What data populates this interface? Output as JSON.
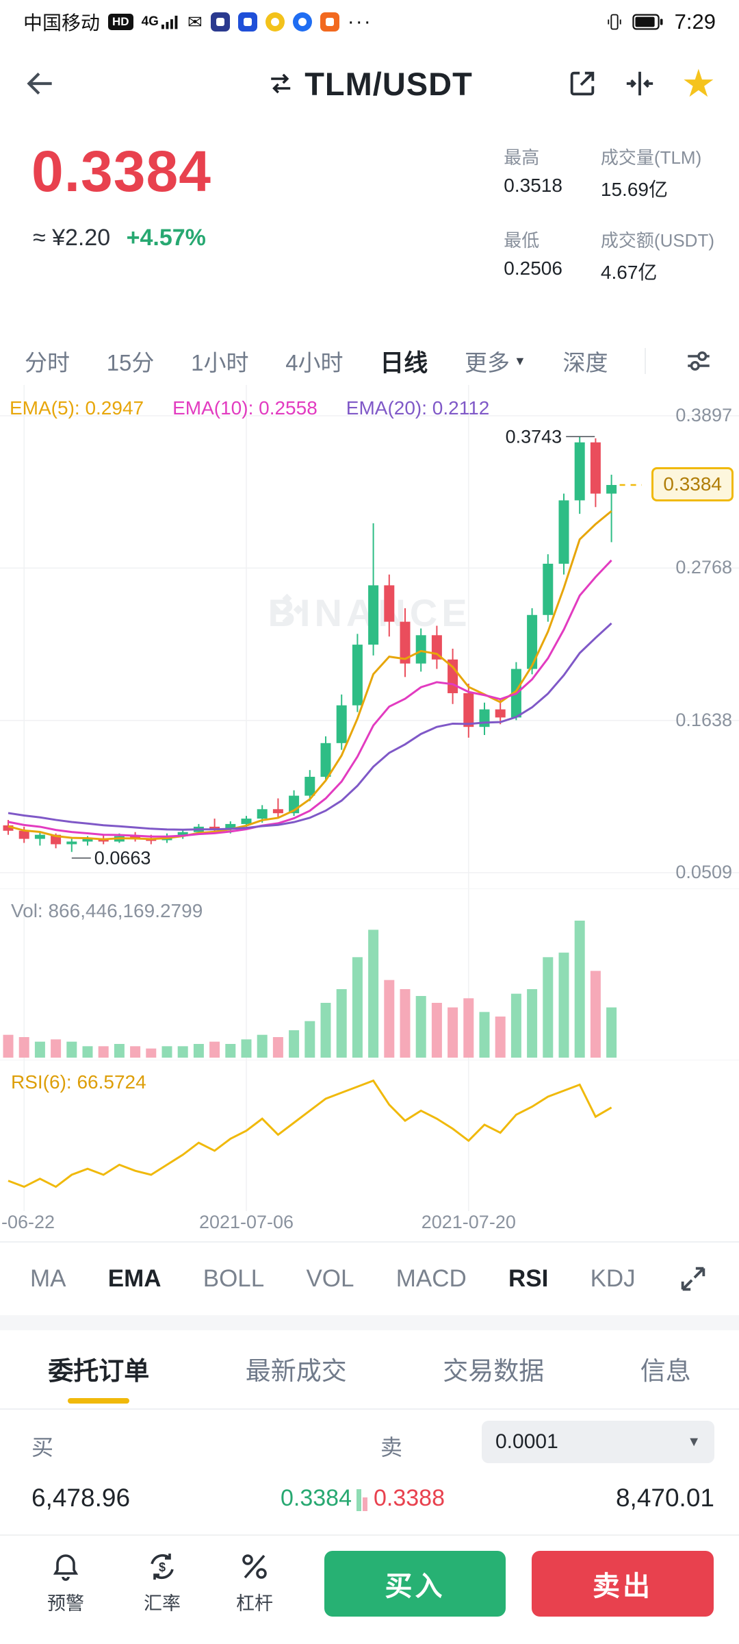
{
  "status_bar": {
    "carrier": "中国移动",
    "hd": "HD",
    "network": "4G",
    "time": "7:29"
  },
  "header": {
    "title": "TLM/USDT"
  },
  "price": {
    "last": "0.3384",
    "fiat": "≈ ¥2.20",
    "change": "+4.57%",
    "stats": [
      {
        "label": "最高",
        "value": "0.3518"
      },
      {
        "label": "成交量(TLM)",
        "value": "15.69亿"
      },
      {
        "label": "最低",
        "value": "0.2506"
      },
      {
        "label": "成交额(USDT)",
        "value": "4.67亿"
      }
    ]
  },
  "period_tabs": {
    "items": [
      "分时",
      "15分",
      "1小时",
      "4小时",
      "日线",
      "更多",
      "深度"
    ],
    "active": "日线"
  },
  "chart_data": {
    "type": "candlestick",
    "watermark": "BINANCE",
    "overlays": [
      {
        "label": "EMA(5): 0.2947",
        "period": 5,
        "color": "#e7a60a"
      },
      {
        "label": "EMA(10): 0.2558",
        "period": 10,
        "color": "#e23bc0"
      },
      {
        "label": "EMA(20): 0.2112",
        "period": 20,
        "color": "#7f58c7"
      }
    ],
    "y_axis": [
      {
        "label": "0.3897",
        "v": 0.3897
      },
      {
        "label": "0.2768",
        "v": 0.2768
      },
      {
        "label": "0.1638",
        "v": 0.1638
      },
      {
        "label": "0.0509",
        "v": 0.0509
      }
    ],
    "current_price": {
      "text": "0.3384",
      "value": 0.3384
    },
    "high_annotation": {
      "text": "0.3743",
      "value": 0.3743,
      "i": 36
    },
    "low_annotation": {
      "text": "0.0663",
      "value": 0.0663,
      "i": 4
    },
    "x_labels": [
      {
        "text": "-06-22",
        "i": 1
      },
      {
        "text": "2021-07-06",
        "i": 15
      },
      {
        "text": "2021-07-20",
        "i": 29
      }
    ],
    "volume_label": "Vol: 866,446,169.2799",
    "rsi_label": "RSI(6): 66.5724",
    "candles": [
      [
        0.086,
        0.09,
        0.079,
        0.082,
        10
      ],
      [
        0.082,
        0.085,
        0.073,
        0.076,
        9
      ],
      [
        0.076,
        0.081,
        0.071,
        0.079,
        7
      ],
      [
        0.079,
        0.08,
        0.069,
        0.072,
        8
      ],
      [
        0.072,
        0.076,
        0.0663,
        0.074,
        7
      ],
      [
        0.074,
        0.078,
        0.071,
        0.076,
        5
      ],
      [
        0.076,
        0.079,
        0.072,
        0.074,
        5
      ],
      [
        0.074,
        0.08,
        0.073,
        0.078,
        6
      ],
      [
        0.078,
        0.081,
        0.074,
        0.076,
        5
      ],
      [
        0.076,
        0.079,
        0.072,
        0.075,
        4
      ],
      [
        0.075,
        0.08,
        0.073,
        0.078,
        5
      ],
      [
        0.078,
        0.083,
        0.076,
        0.081,
        5
      ],
      [
        0.081,
        0.087,
        0.079,
        0.085,
        6
      ],
      [
        0.085,
        0.091,
        0.081,
        0.083,
        7
      ],
      [
        0.083,
        0.089,
        0.08,
        0.087,
        6
      ],
      [
        0.087,
        0.093,
        0.084,
        0.091,
        8
      ],
      [
        0.091,
        0.101,
        0.088,
        0.098,
        10
      ],
      [
        0.098,
        0.106,
        0.091,
        0.095,
        9
      ],
      [
        0.095,
        0.112,
        0.093,
        0.108,
        12
      ],
      [
        0.108,
        0.127,
        0.104,
        0.122,
        16
      ],
      [
        0.122,
        0.152,
        0.119,
        0.147,
        24
      ],
      [
        0.147,
        0.183,
        0.142,
        0.175,
        30
      ],
      [
        0.175,
        0.228,
        0.17,
        0.22,
        44
      ],
      [
        0.22,
        0.31,
        0.212,
        0.264,
        56
      ],
      [
        0.264,
        0.272,
        0.226,
        0.237,
        34
      ],
      [
        0.237,
        0.247,
        0.196,
        0.206,
        30
      ],
      [
        0.206,
        0.232,
        0.2,
        0.227,
        27
      ],
      [
        0.227,
        0.234,
        0.202,
        0.209,
        24
      ],
      [
        0.209,
        0.217,
        0.176,
        0.184,
        22
      ],
      [
        0.184,
        0.191,
        0.151,
        0.159,
        26
      ],
      [
        0.159,
        0.177,
        0.153,
        0.172,
        20
      ],
      [
        0.172,
        0.18,
        0.161,
        0.166,
        18
      ],
      [
        0.166,
        0.207,
        0.164,
        0.202,
        28
      ],
      [
        0.202,
        0.247,
        0.198,
        0.242,
        30
      ],
      [
        0.242,
        0.287,
        0.237,
        0.28,
        44
      ],
      [
        0.28,
        0.332,
        0.272,
        0.327,
        46
      ],
      [
        0.327,
        0.3743,
        0.317,
        0.37,
        60
      ],
      [
        0.37,
        0.373,
        0.322,
        0.332,
        38
      ],
      [
        0.332,
        0.346,
        0.296,
        0.3384,
        22
      ]
    ],
    "rsi": [
      30,
      27,
      31,
      27,
      33,
      36,
      33,
      38,
      35,
      33,
      38,
      43,
      49,
      45,
      51,
      55,
      61,
      53,
      59,
      65,
      71,
      74,
      77,
      80,
      68,
      60,
      65,
      61,
      56,
      50,
      58,
      54,
      63,
      67,
      72,
      75,
      78,
      62,
      66.6
    ]
  },
  "indicator_tabs": {
    "items": [
      "MA",
      "EMA",
      "BOLL",
      "VOL",
      "MACD",
      "RSI",
      "KDJ"
    ],
    "active": [
      "EMA",
      "RSI"
    ]
  },
  "bottom_tabs": {
    "items": [
      "委托订单",
      "最新成交",
      "交易数据",
      "信息"
    ],
    "active": "委托订单"
  },
  "order_book": {
    "buy_label": "买",
    "sell_label": "卖",
    "precision": "0.0001",
    "buy_amount": "6,478.96",
    "buy_price": "0.3384",
    "sell_price": "0.3388",
    "sell_amount": "8,470.01"
  },
  "action_bar": {
    "alert": "预警",
    "rate": "汇率",
    "leverage": "杠杆",
    "buy": "买入",
    "sell": "卖出"
  },
  "colors": {
    "up": "#2ebd85",
    "down": "#ea4d5c",
    "vol_up": "#8fdcb4",
    "vol_down": "#f6a9b8",
    "accent_yellow": "#F0B90B",
    "price_red": "#e8414e",
    "green_text": "#27a871",
    "grid": "#f0f1f3"
  }
}
